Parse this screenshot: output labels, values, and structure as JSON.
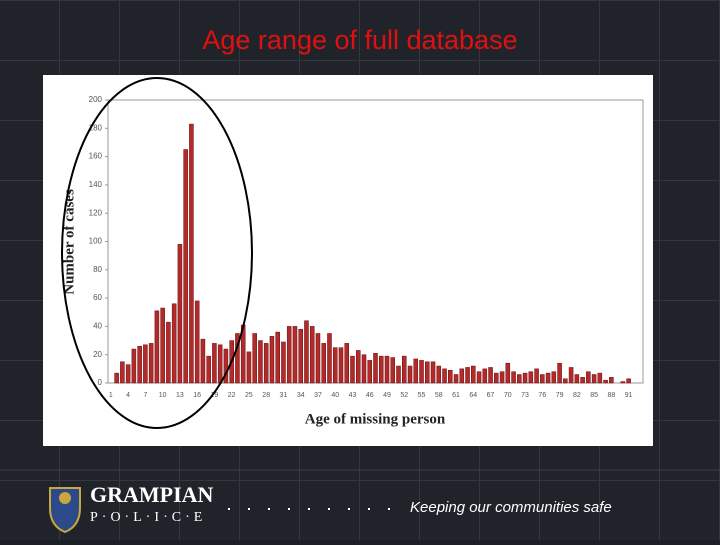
{
  "chart_data": {
    "type": "bar",
    "title": "Age range of full database",
    "x_label": "Age of missing person",
    "y_label": "Number of cases",
    "categories": [
      "1",
      null,
      null,
      "4",
      null,
      null,
      "7",
      null,
      null,
      "10",
      null,
      null,
      "13",
      null,
      null,
      "16",
      null,
      null,
      "19",
      null,
      null,
      "22",
      null,
      null,
      "25",
      null,
      null,
      "28",
      null,
      null,
      "31",
      null,
      null,
      "34",
      null,
      null,
      "37",
      null,
      null,
      "40",
      null,
      null,
      "43",
      null,
      null,
      "46",
      null,
      null,
      "49",
      null,
      null,
      "52",
      null,
      null,
      "55",
      null,
      null,
      "58",
      null,
      null,
      "61",
      null,
      null,
      "64",
      null,
      null,
      "67",
      null,
      null,
      "70",
      null,
      null,
      "73",
      null,
      null,
      "76",
      null,
      null,
      "79",
      null,
      null,
      "82",
      null,
      null,
      "85",
      null,
      null,
      "88",
      null,
      null,
      "91"
    ],
    "values": [
      0,
      7,
      15,
      13,
      24,
      26,
      27,
      28,
      51,
      53,
      43,
      56,
      98,
      165,
      183,
      58,
      31,
      19,
      28,
      27,
      24,
      30,
      35,
      41,
      22,
      35,
      30,
      28,
      33,
      36,
      29,
      40,
      40,
      38,
      44,
      40,
      35,
      28,
      35,
      25,
      25,
      28,
      19,
      23,
      20,
      16,
      21,
      19,
      19,
      18,
      12,
      19,
      12,
      17,
      16,
      15,
      15,
      12,
      10,
      9,
      6,
      10,
      11,
      12,
      8,
      10,
      11,
      7,
      8,
      14,
      8,
      6,
      7,
      8,
      10,
      6,
      7,
      8,
      14,
      3,
      11,
      6,
      4,
      8,
      6,
      7,
      2,
      4,
      0,
      1,
      3
    ],
    "color": "#b22a2a",
    "ylim": [
      0,
      200
    ],
    "yticks": [
      0,
      20,
      40,
      60,
      80,
      100,
      120,
      140,
      160,
      180,
      200
    ],
    "grid": false
  },
  "footer": {
    "brand": "GRAMPIAN",
    "sub": "P·O·L·I·C·E",
    "slogan": "Keeping our communities safe"
  }
}
